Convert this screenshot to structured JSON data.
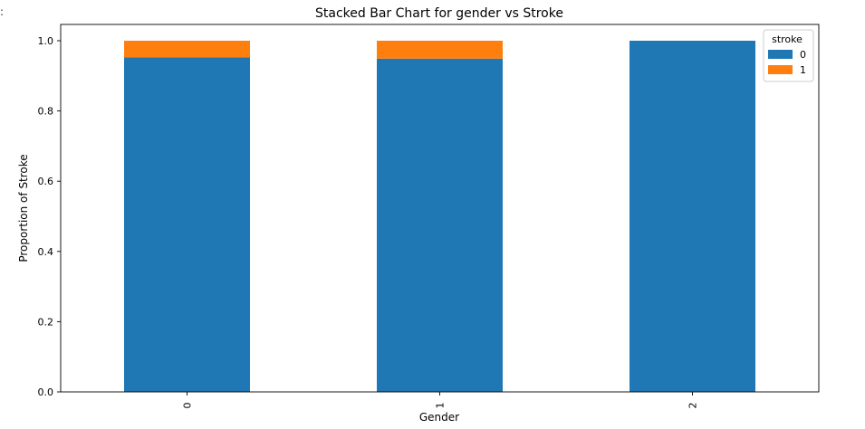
{
  "chart_data": {
    "type": "bar",
    "stacked": true,
    "title": "Stacked Bar Chart for gender vs Stroke",
    "xlabel": "Gender",
    "ylabel": "Proportion of Stroke",
    "categories": [
      "0",
      "1",
      "2"
    ],
    "series": [
      {
        "name": "0",
        "color": "#1f77b4",
        "values": [
          0.953,
          0.949,
          1.0
        ]
      },
      {
        "name": "1",
        "color": "#ff7f0e",
        "values": [
          0.047,
          0.051,
          0.0
        ]
      }
    ],
    "ylim": [
      0,
      1.05
    ],
    "yticks": [
      "0.0",
      "0.2",
      "0.4",
      "0.6",
      "0.8",
      "1.0"
    ],
    "legend": {
      "title": "stroke",
      "placement": "top-right"
    },
    "grid": false
  },
  "stray_char": ":"
}
